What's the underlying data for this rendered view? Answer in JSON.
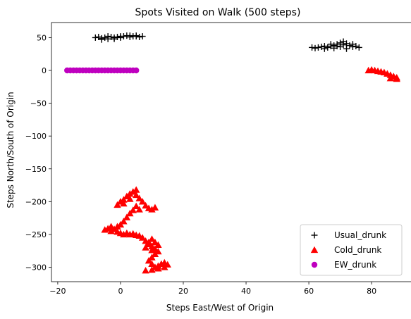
{
  "chart_data": {
    "type": "scatter",
    "title": "Spots Visited on Walk (500 steps)",
    "xlabel": "Steps East/West of Origin",
    "ylabel": "Steps North/South of Origin",
    "xlim": [
      -22,
      93
    ],
    "ylim": [
      -322,
      73
    ],
    "xticks": [
      -20,
      0,
      20,
      40,
      60,
      80
    ],
    "yticks": [
      50,
      0,
      -50,
      -100,
      -150,
      -200,
      -250,
      -300
    ],
    "grid": false,
    "legend": "lower-right",
    "series": [
      {
        "name": "Usual_drunk",
        "marker": "plus",
        "color": "#000000",
        "points": [
          [
            -8,
            50
          ],
          [
            -7,
            51
          ],
          [
            -6,
            49
          ],
          [
            -5,
            50
          ],
          [
            -4,
            48
          ],
          [
            -3,
            51
          ],
          [
            -2,
            50
          ],
          [
            -1,
            51
          ],
          [
            0,
            52
          ],
          [
            1,
            52
          ],
          [
            2,
            53
          ],
          [
            3,
            53
          ],
          [
            4,
            52
          ],
          [
            5,
            52
          ],
          [
            6,
            51
          ],
          [
            7,
            52
          ],
          [
            -6,
            47
          ],
          [
            -4,
            52
          ],
          [
            0,
            50
          ],
          [
            3,
            51
          ],
          [
            5,
            53
          ],
          [
            -2,
            48
          ],
          [
            61,
            35
          ],
          [
            62,
            34
          ],
          [
            63,
            35
          ],
          [
            64,
            36
          ],
          [
            65,
            37
          ],
          [
            66,
            35
          ],
          [
            67,
            37
          ],
          [
            68,
            38
          ],
          [
            69,
            40
          ],
          [
            70,
            42
          ],
          [
            71,
            44
          ],
          [
            72,
            41
          ],
          [
            73,
            38
          ],
          [
            74,
            36
          ],
          [
            75,
            37
          ],
          [
            76,
            35
          ],
          [
            65,
            33
          ],
          [
            67,
            40
          ],
          [
            69,
            37
          ],
          [
            71,
            39
          ],
          [
            72,
            33
          ],
          [
            74,
            40
          ],
          [
            68,
            34
          ],
          [
            70,
            36
          ]
        ]
      },
      {
        "name": "Cold_drunk",
        "marker": "triangle",
        "color": "#ff0000",
        "points": [
          [
            79,
            0
          ],
          [
            80,
            1
          ],
          [
            81,
            0
          ],
          [
            82,
            -1
          ],
          [
            83,
            -2
          ],
          [
            84,
            -3
          ],
          [
            85,
            -5
          ],
          [
            86,
            -7
          ],
          [
            87,
            -9
          ],
          [
            88,
            -11
          ],
          [
            86,
            -12
          ],
          [
            88,
            -13
          ],
          [
            4,
            -185
          ],
          [
            5,
            -182
          ],
          [
            3,
            -188
          ],
          [
            2,
            -192
          ],
          [
            1,
            -197
          ],
          [
            0,
            -200
          ],
          [
            -1,
            -205
          ],
          [
            1,
            -203
          ],
          [
            3,
            -196
          ],
          [
            5,
            -190
          ],
          [
            6,
            -195
          ],
          [
            7,
            -200
          ],
          [
            8,
            -206
          ],
          [
            9,
            -210
          ],
          [
            10,
            -212
          ],
          [
            11,
            -209
          ],
          [
            6,
            -212
          ],
          [
            5,
            -207
          ],
          [
            4,
            -213
          ],
          [
            3,
            -218
          ],
          [
            2,
            -224
          ],
          [
            1,
            -230
          ],
          [
            0,
            -235
          ],
          [
            -1,
            -238
          ],
          [
            -2,
            -242
          ],
          [
            -3,
            -238
          ],
          [
            -4,
            -241
          ],
          [
            -5,
            -243
          ],
          [
            -3,
            -245
          ],
          [
            -1,
            -246
          ],
          [
            0,
            -248
          ],
          [
            1,
            -250
          ],
          [
            2,
            -248
          ],
          [
            3,
            -250
          ],
          [
            4,
            -249
          ],
          [
            5,
            -251
          ],
          [
            6,
            -252
          ],
          [
            7,
            -255
          ],
          [
            8,
            -260
          ],
          [
            9,
            -265
          ],
          [
            10,
            -268
          ],
          [
            11,
            -272
          ],
          [
            12,
            -276
          ],
          [
            11,
            -280
          ],
          [
            10,
            -285
          ],
          [
            9,
            -290
          ],
          [
            10,
            -295
          ],
          [
            11,
            -300
          ],
          [
            12,
            -298
          ],
          [
            13,
            -295
          ],
          [
            14,
            -293
          ],
          [
            15,
            -296
          ],
          [
            14,
            -300
          ],
          [
            12,
            -302
          ],
          [
            10,
            -304
          ],
          [
            8,
            -305
          ],
          [
            9,
            -262
          ],
          [
            10,
            -257
          ],
          [
            11,
            -262
          ],
          [
            12,
            -266
          ],
          [
            10,
            -274
          ],
          [
            8,
            -270
          ]
        ]
      },
      {
        "name": "EW_drunk",
        "marker": "circle",
        "color": "#bf00bf",
        "points": [
          [
            -17,
            0
          ],
          [
            -16,
            0
          ],
          [
            -15,
            0
          ],
          [
            -14,
            0
          ],
          [
            -13,
            0
          ],
          [
            -12,
            0
          ],
          [
            -11,
            0
          ],
          [
            -10,
            0
          ],
          [
            -9,
            0
          ],
          [
            -8,
            0
          ],
          [
            -7,
            0
          ],
          [
            -6,
            0
          ],
          [
            -5,
            0
          ],
          [
            -4,
            0
          ],
          [
            -3,
            0
          ],
          [
            -2,
            0
          ],
          [
            -1,
            0
          ],
          [
            0,
            0
          ],
          [
            1,
            0
          ],
          [
            2,
            0
          ],
          [
            3,
            0
          ],
          [
            4,
            0
          ],
          [
            5,
            0
          ]
        ]
      }
    ]
  }
}
